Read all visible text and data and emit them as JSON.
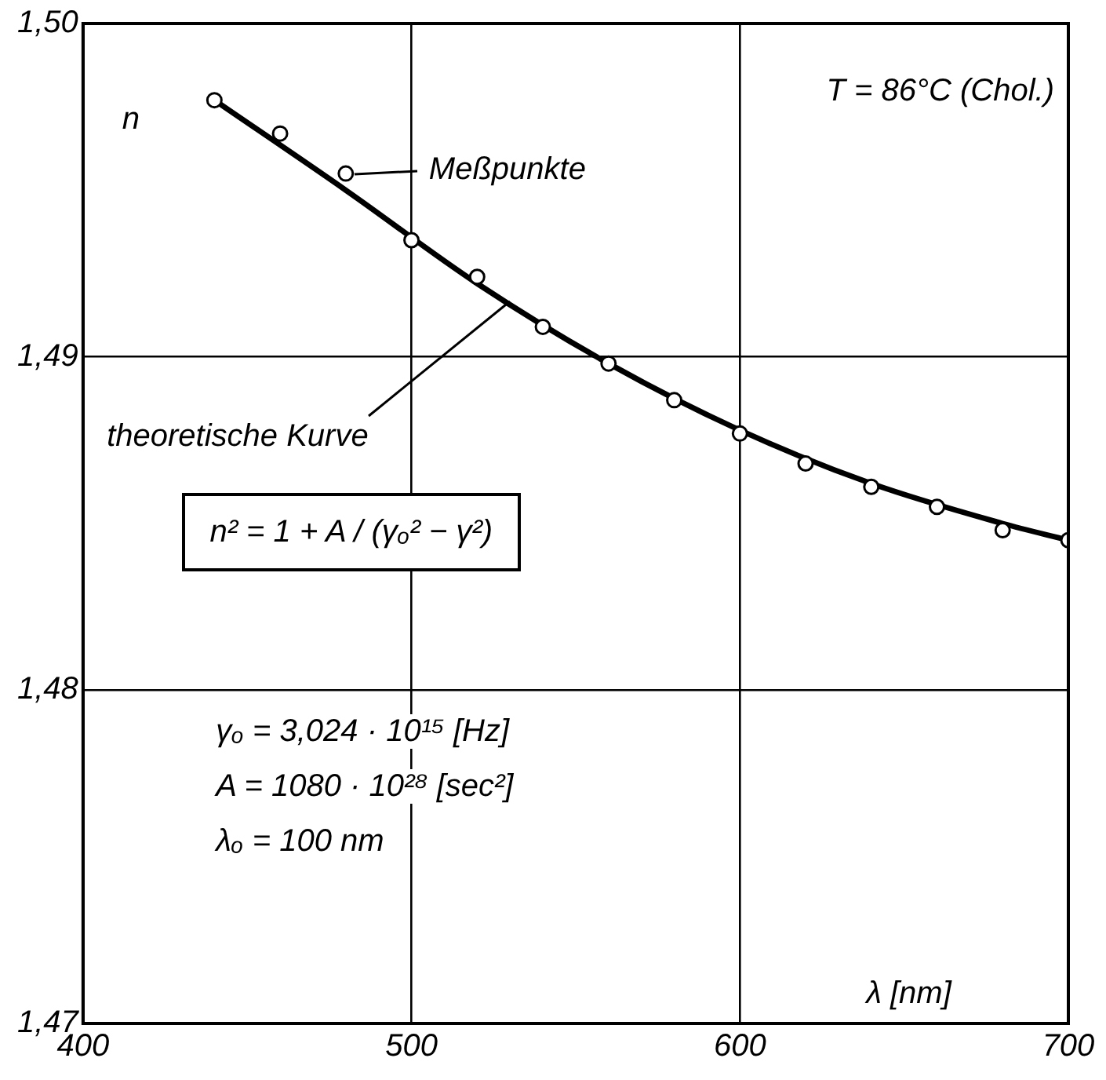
{
  "chart_data": {
    "type": "line",
    "xlabel": "λ [nm]",
    "ylabel": "n",
    "xlim": [
      400,
      700
    ],
    "xticks": [
      400,
      500,
      600,
      700
    ],
    "ylim": [
      1.47,
      1.5
    ],
    "yticks": [
      {
        "value": 1.47,
        "label": "1,47"
      },
      {
        "value": 1.48,
        "label": "1,48"
      },
      {
        "value": 1.49,
        "label": "1,49"
      },
      {
        "value": 1.5,
        "label": "1,50"
      }
    ],
    "grid": true,
    "legend": false,
    "series": [
      {
        "type": "scatter",
        "marker": "circle",
        "color": "#000000",
        "x": [
          440,
          460,
          480,
          500,
          520,
          540,
          560,
          580,
          600,
          620,
          640,
          660,
          680,
          700
        ],
        "values": [
          1.4977,
          1.4967,
          1.4955,
          1.4935,
          1.4924,
          1.4909,
          1.4898,
          1.4887,
          1.4877,
          1.4868,
          1.4861,
          1.4855,
          1.4848,
          1.4845
        ]
      },
      {
        "type": "line",
        "marker": "none",
        "line_style": "solid",
        "color": "#000000",
        "x": [
          440,
          480,
          520,
          560,
          600,
          640,
          680,
          700
        ],
        "values": [
          1.4977,
          1.495,
          1.4922,
          1.4898,
          1.4878,
          1.4862,
          1.485,
          1.4845
        ]
      }
    ],
    "annotations": [
      "T = 86°C (Chol.)",
      {
        "text": "Meßpunkte",
        "x": 480,
        "y": 1.4955
      },
      {
        "text": "theoretische Kurve",
        "x": 530,
        "y": 1.4918
      },
      "n² = 1 + A / (γₒ² − γ²)",
      "γₒ = 3,024 · 10¹⁵ [Hz]",
      "A = 1080 · 10²⁸ [sec²]",
      "λₒ = 100 nm"
    ]
  }
}
